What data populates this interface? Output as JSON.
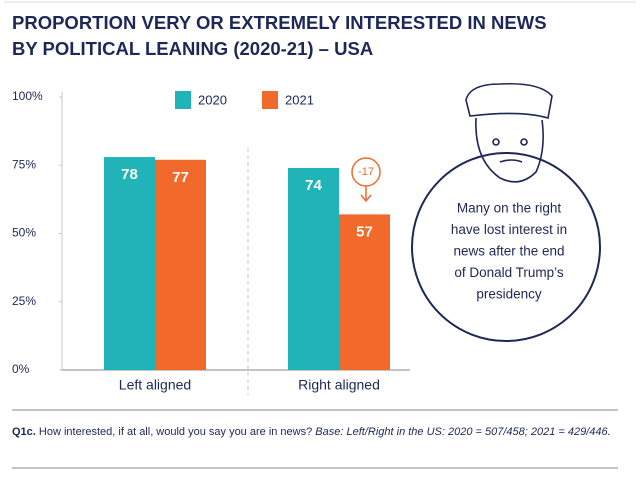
{
  "chart_data": {
    "type": "bar",
    "title": [
      "PROPORTION VERY OR EXTREMELY INTERESTED IN NEWS",
      "BY POLITICAL LEANING (2020-21) – USA"
    ],
    "categories": [
      "Left aligned",
      "Right aligned"
    ],
    "series": [
      {
        "name": "2020",
        "color": "#20b4b8",
        "values": [
          78,
          74
        ]
      },
      {
        "name": "2021",
        "color": "#f26a2b",
        "values": [
          77,
          57
        ]
      }
    ],
    "ylim": [
      0,
      100
    ],
    "yticks": [
      {
        "value": 0,
        "label": "0%"
      },
      {
        "value": 25,
        "label": "25%"
      },
      {
        "value": 50,
        "label": "50%"
      },
      {
        "value": 75,
        "label": "75%"
      },
      {
        "value": 100,
        "label": "100%"
      }
    ],
    "grid": false,
    "annotations": [
      {
        "text": "-17"
      }
    ],
    "callout": [
      "Many on the right",
      "have lost interest in",
      "news after the end",
      "of Donald Trump’s",
      "presidency"
    ],
    "footnote": {
      "label": "Q1c.",
      "question": "How interested, if at all, would you say you are in news?",
      "base": "Base: Left/Right in the US: 2020 = 507/458; 2021 = 429/446."
    }
  }
}
